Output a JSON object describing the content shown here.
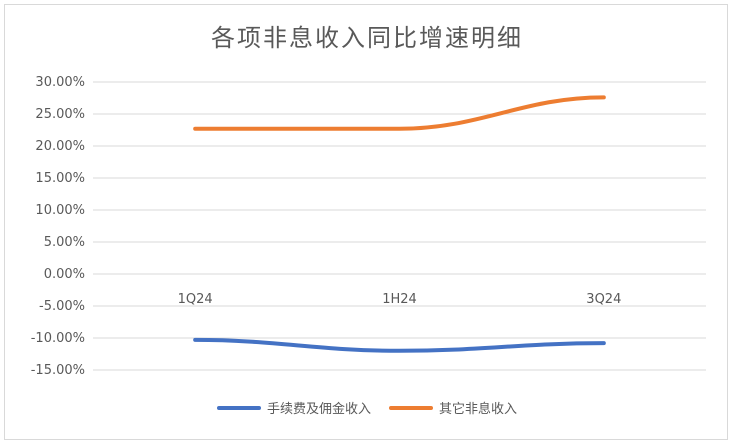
{
  "chart_data": {
    "type": "line",
    "title": "各项非息收入同比增速明细",
    "categories": [
      "1Q24",
      "1H24",
      "3Q24"
    ],
    "ylim": [
      -15,
      30
    ],
    "yticks": [
      30,
      25,
      20,
      15,
      10,
      5,
      0,
      -5,
      -10,
      -15
    ],
    "ytick_labels": [
      "30.00%",
      "25.00%",
      "20.00%",
      "15.00%",
      "10.00%",
      "5.00%",
      "0.00%",
      "-5.00%",
      "-10.00%",
      "-15.00%"
    ],
    "grid": true,
    "legend_position": "bottom",
    "series": [
      {
        "name": "手续费及佣金收入",
        "values": [
          -10.3,
          -12.0,
          -10.8
        ],
        "color": "#4472C4"
      },
      {
        "name": "其它非息收入",
        "values": [
          22.7,
          22.7,
          27.6
        ],
        "color": "#ED7D31"
      }
    ]
  }
}
